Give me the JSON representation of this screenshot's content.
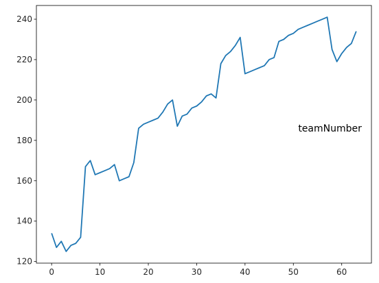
{
  "chart_data": {
    "type": "line",
    "title": "",
    "xlabel": "",
    "ylabel": "",
    "xlim": [
      -3.15,
      66.15
    ],
    "ylim": [
      119.2,
      246.8
    ],
    "xticks": [
      0,
      10,
      20,
      30,
      40,
      50,
      60
    ],
    "yticks": [
      120,
      140,
      160,
      180,
      200,
      220,
      240
    ],
    "grid": false,
    "legend": "none",
    "annotation": {
      "text": "teamNumber",
      "x": 51,
      "y": 186
    },
    "series": [
      {
        "color": "#1f77b4",
        "x": [
          0,
          1,
          2,
          3,
          4,
          5,
          6,
          7,
          8,
          9,
          10,
          11,
          12,
          13,
          14,
          15,
          16,
          17,
          18,
          19,
          20,
          21,
          22,
          23,
          24,
          25,
          26,
          27,
          28,
          29,
          30,
          31,
          32,
          33,
          34,
          35,
          36,
          37,
          38,
          39,
          40,
          41,
          42,
          43,
          44,
          45,
          46,
          47,
          48,
          49,
          50,
          51,
          52,
          53,
          54,
          55,
          56,
          57,
          58,
          59,
          60,
          61,
          62,
          63
        ],
        "y": [
          134,
          127,
          130,
          125,
          128,
          129,
          132,
          167,
          170,
          163,
          164,
          165,
          166,
          168,
          160,
          161,
          162,
          169,
          186,
          188,
          189,
          190,
          191,
          194,
          198,
          200,
          187,
          192,
          193,
          196,
          197,
          199,
          202,
          203,
          201,
          218,
          222,
          224,
          227,
          231,
          213,
          214,
          215,
          216,
          217,
          220,
          221,
          229,
          230,
          232,
          233,
          235,
          236,
          237,
          238,
          239,
          240,
          241,
          225,
          219,
          223,
          226,
          228,
          234
        ]
      }
    ]
  }
}
